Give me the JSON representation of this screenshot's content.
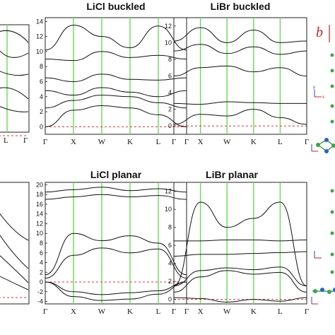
{
  "figure": {
    "panels": {
      "licl_buckled": {
        "title": "LiCl buckled",
        "yticks": [
          "0",
          "2",
          "4",
          "6",
          "8",
          "10",
          "12",
          "14"
        ]
      },
      "libr_buckled": {
        "title": "LiBr buckled",
        "yticks": [
          "0",
          "2",
          "4",
          "6",
          "8",
          "10",
          "12"
        ]
      },
      "licl_planar": {
        "title": "LiCl planar",
        "yticks": [
          "-4",
          "-2",
          "0",
          "2",
          "4",
          "6",
          "8",
          "10",
          "12",
          "14",
          "16",
          "18",
          "20"
        ]
      },
      "libr_planar": {
        "title": "LiBr planar",
        "yticks": [
          "0",
          "2",
          "4",
          "6",
          "8",
          "10",
          "12"
        ]
      },
      "left_top": {
        "ktick_labels": [
          "L",
          "Γ"
        ]
      }
    },
    "kpoints": [
      "Γ",
      "X",
      "W",
      "K",
      "L",
      "Γ"
    ],
    "panel_label_b": "b",
    "axis_letters": {
      "y": "y",
      "x": "x"
    },
    "colors": {
      "band_lines": "#111111",
      "high_symmetry_lines": "#66dd55",
      "fermi_level": "#e03030",
      "atoms": "#33aa44",
      "panel_label": "#d02020"
    }
  },
  "chart_data": [
    {
      "type": "line",
      "title": "LiCl buckled",
      "x_ticks": [
        "Γ",
        "X",
        "W",
        "K",
        "L",
        "Γ"
      ],
      "ylim": [
        -1,
        14.5
      ],
      "reference_line": 0,
      "series": [
        {
          "x": [
            0,
            1,
            2,
            3,
            4,
            5
          ],
          "values": [
            0,
            2.2,
            2.8,
            2.5,
            1.6,
            0
          ]
        },
        {
          "x": [
            0,
            1,
            2,
            3,
            4,
            5
          ],
          "values": [
            2.5,
            3.5,
            4.2,
            4.0,
            3.2,
            2.5
          ]
        },
        {
          "x": [
            0,
            1,
            2,
            3,
            4,
            5
          ],
          "values": [
            4.8,
            4.2,
            5.2,
            4.6,
            4.0,
            4.8
          ]
        },
        {
          "x": [
            0,
            1,
            2,
            3,
            4,
            5
          ],
          "values": [
            6.5,
            6.0,
            7.0,
            6.3,
            6.2,
            6.5
          ]
        },
        {
          "x": [
            0,
            1,
            2,
            3,
            4,
            5
          ],
          "values": [
            9.0,
            8.8,
            10.0,
            9.2,
            9.5,
            9.0
          ]
        },
        {
          "x": [
            0,
            1,
            2,
            3,
            4,
            5
          ],
          "values": [
            10.2,
            13.5,
            12.0,
            10.5,
            13.4,
            10.2
          ]
        }
      ]
    },
    {
      "type": "line",
      "title": "LiBr buckled",
      "x_ticks": [
        "Γ",
        "X",
        "W",
        "K",
        "L",
        "Γ"
      ],
      "ylim": [
        -1,
        13
      ],
      "reference_line": 0,
      "series": [
        {
          "x": [
            0,
            1,
            2,
            3,
            4,
            5
          ],
          "values": [
            0.2,
            1.4,
            1.2,
            2.0,
            1.0,
            0.2
          ]
        },
        {
          "x": [
            0,
            1,
            2,
            3,
            4,
            5
          ],
          "values": [
            2.7,
            2.6,
            2.9,
            2.8,
            2.7,
            2.7
          ]
        },
        {
          "x": [
            0,
            1,
            2,
            3,
            4,
            5
          ],
          "values": [
            6.0,
            7.0,
            7.2,
            6.5,
            7.0,
            6.0
          ]
        },
        {
          "x": [
            0,
            1,
            2,
            3,
            4,
            5
          ],
          "values": [
            9.0,
            9.8,
            8.7,
            9.5,
            8.6,
            9.0
          ]
        },
        {
          "x": [
            0,
            1,
            2,
            3,
            4,
            5
          ],
          "values": [
            10.2,
            11.8,
            10.0,
            11.5,
            10.0,
            10.2
          ]
        }
      ]
    },
    {
      "type": "line",
      "title": "LiCl planar",
      "x_ticks": [
        "Γ",
        "X",
        "W",
        "K",
        "L",
        "Γ"
      ],
      "ylim": [
        -4.5,
        20.5
      ],
      "reference_line": 0,
      "series": [
        {
          "x": [
            0,
            1,
            2,
            3,
            4,
            5
          ],
          "values": [
            0,
            -3.0,
            -3.8,
            -3.5,
            -2.5,
            0
          ]
        },
        {
          "x": [
            0,
            1,
            2,
            3,
            4,
            5
          ],
          "values": [
            0,
            -2.0,
            -2.6,
            -2.2,
            -1.8,
            0
          ]
        },
        {
          "x": [
            0,
            1,
            2,
            3,
            4,
            5
          ],
          "values": [
            0.8,
            5.5,
            7.0,
            6.0,
            6.8,
            0.8
          ]
        },
        {
          "x": [
            0,
            1,
            2,
            3,
            4,
            5
          ],
          "values": [
            1.5,
            10.0,
            8.5,
            9.5,
            8.0,
            1.5
          ]
        },
        {
          "x": [
            0,
            1,
            2,
            3,
            4,
            5
          ],
          "values": [
            17.0,
            17.5,
            18.0,
            17.5,
            17.8,
            17.0
          ]
        },
        {
          "x": [
            0,
            1,
            2,
            3,
            4,
            5
          ],
          "values": [
            18.5,
            19.0,
            19.5,
            18.8,
            19.2,
            18.5
          ]
        }
      ]
    },
    {
      "type": "line",
      "title": "LiBr planar",
      "x_ticks": [
        "Γ",
        "X",
        "W",
        "K",
        "L",
        "Γ"
      ],
      "ylim": [
        -0.5,
        13
      ],
      "reference_line": 0,
      "series": [
        {
          "x": [
            0,
            1,
            2,
            3,
            4,
            5
          ],
          "values": [
            0.2,
            0.1,
            -0.3,
            0.0,
            -0.2,
            0.2
          ]
        },
        {
          "x": [
            0,
            1,
            2,
            3,
            4,
            5
          ],
          "values": [
            0.8,
            2.5,
            3.2,
            2.8,
            3.0,
            0.8
          ]
        },
        {
          "x": [
            0,
            1,
            2,
            3,
            4,
            5
          ],
          "values": [
            1.5,
            3.2,
            3.5,
            3.3,
            3.6,
            1.5
          ]
        },
        {
          "x": [
            0,
            1,
            2,
            3,
            4,
            5
          ],
          "values": [
            4.8,
            5.0,
            5.0,
            5.1,
            5.2,
            5.3
          ]
        },
        {
          "x": [
            0,
            1,
            2,
            3,
            4,
            5
          ],
          "values": [
            6.5,
            6.5,
            6.6,
            6.6,
            6.5,
            6.6
          ]
        },
        {
          "x": [
            0,
            1,
            2,
            3,
            4,
            5
          ],
          "values": [
            1.5,
            10.8,
            8.0,
            9.0,
            10.8,
            1.5
          ]
        }
      ]
    }
  ]
}
